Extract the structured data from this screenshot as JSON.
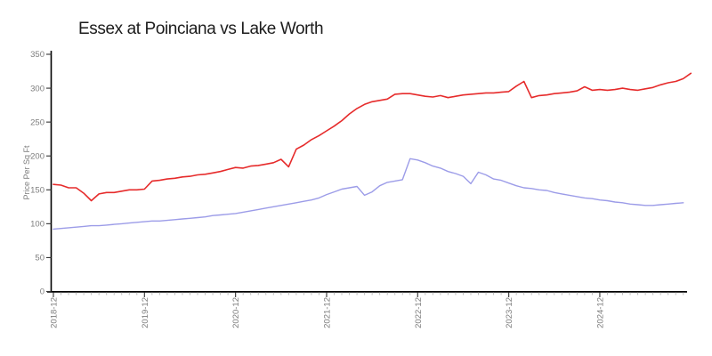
{
  "title": "Essex at Poinciana vs Lake Worth",
  "chart_data": {
    "type": "line",
    "title": "Essex at Poinciana vs Lake Worth",
    "xlabel": "",
    "ylabel": "Price Per Sq Ft",
    "x_start": "2018-12",
    "x_interval": "monthly",
    "n_points": 85,
    "x_tick_labels": [
      "2018-12",
      "2019-12",
      "2020-12",
      "2021-12",
      "2022-12",
      "2023-12",
      "2024-12"
    ],
    "y_ticks": [
      0,
      50,
      100,
      150,
      200,
      250,
      300,
      350
    ],
    "ylim": [
      0,
      350
    ],
    "grid": false,
    "legend": "none",
    "axis_color": "#000000",
    "tick_label_color": "#7d7d7d",
    "minor_tick_color": "#bbbbbb",
    "series": [
      {
        "name": "Essex at Poinciana",
        "color": "#e62b2b",
        "values": [
          158,
          157,
          153,
          153,
          145,
          134,
          144,
          146,
          146,
          148,
          150,
          150,
          151,
          163,
          164,
          166,
          167,
          169,
          170,
          172,
          173,
          175,
          177,
          180,
          183,
          182,
          185,
          186,
          188,
          190,
          195,
          184,
          210,
          216,
          224,
          230,
          237,
          244,
          252,
          262,
          270,
          276,
          280,
          282,
          284,
          291,
          292,
          292,
          290,
          288,
          287,
          289,
          286,
          288,
          290,
          291,
          292,
          293,
          293,
          294,
          295,
          303,
          310,
          286,
          289,
          290,
          292,
          293,
          294,
          296,
          302,
          297,
          298,
          297,
          298,
          300,
          298,
          297,
          299,
          301,
          305,
          308,
          310,
          314,
          322
        ]
      },
      {
        "name": "Lake Worth",
        "color": "#9c9ce8",
        "values": [
          92,
          93,
          94,
          95,
          96,
          97,
          97,
          98,
          99,
          100,
          101,
          102,
          103,
          104,
          104,
          105,
          106,
          107,
          108,
          109,
          110,
          112,
          113,
          114,
          115,
          117,
          119,
          121,
          123,
          125,
          127,
          129,
          131,
          133,
          135,
          138,
          143,
          147,
          151,
          153,
          155,
          142,
          147,
          156,
          161,
          163,
          165,
          196,
          194,
          190,
          185,
          182,
          177,
          174,
          170,
          159,
          176,
          172,
          166,
          164,
          160,
          156,
          153,
          152,
          150,
          149,
          146,
          144,
          142,
          140,
          138,
          137,
          135,
          134,
          132,
          131,
          129,
          128,
          127,
          127,
          128,
          129,
          130,
          131,
          null
        ]
      }
    ]
  }
}
